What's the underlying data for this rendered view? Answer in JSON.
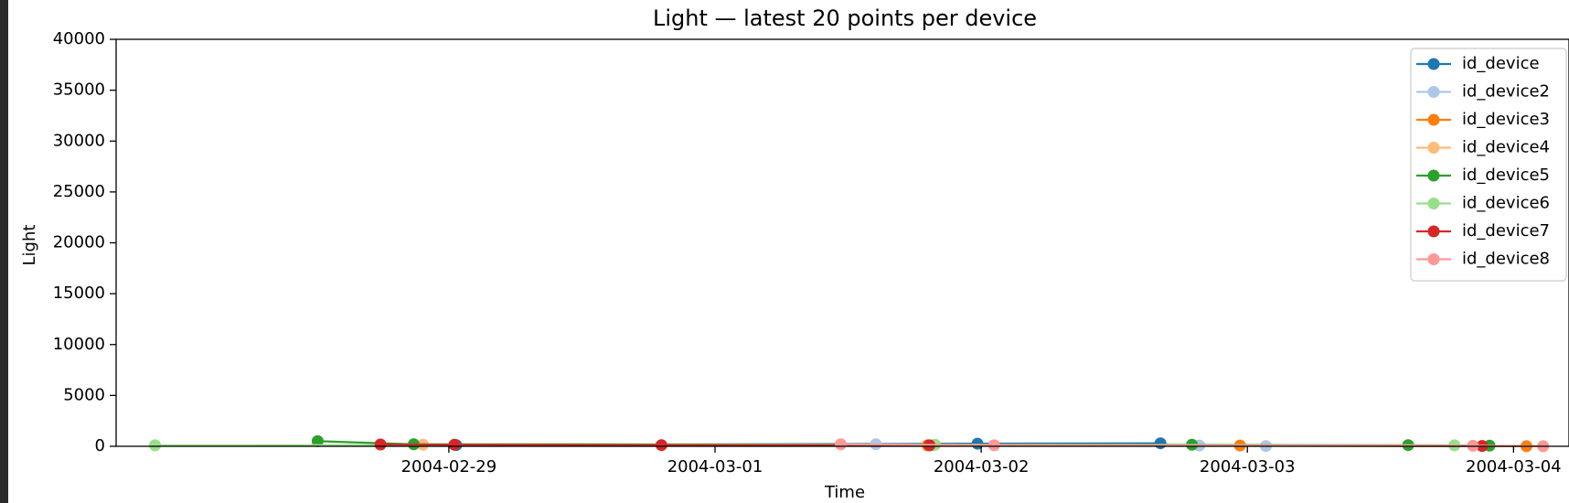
{
  "chart_data": {
    "type": "line",
    "title": "Light — latest 20 points per device",
    "xlabel": "Time",
    "ylabel": "Light",
    "ylim": [
      0,
      40000
    ],
    "xlim": [
      "2004-02-27T18:00",
      "2004-03-04T05:00"
    ],
    "grid": false,
    "legend_position": "top-right",
    "y_ticks": [
      "0",
      "5000",
      "10000",
      "15000",
      "20000",
      "25000",
      "30000",
      "35000",
      "40000"
    ],
    "x_ticks": [
      "2004-02-29",
      "2004-03-01",
      "2004-03-02",
      "2004-03-03",
      "2004-03-04"
    ],
    "series": [
      {
        "name": "id_device",
        "color": "#1f77b4",
        "points": [
          {
            "t": "2004-02-29T00:40",
            "v": 120
          },
          {
            "t": "2004-03-01T23:40",
            "v": 260
          },
          {
            "t": "2004-03-02T16:10",
            "v": 300
          }
        ]
      },
      {
        "name": "id_device2",
        "color": "#aec7e8",
        "points": [
          {
            "t": "2004-03-01T14:30",
            "v": 200
          },
          {
            "t": "2004-03-02T19:40",
            "v": 80
          },
          {
            "t": "2004-03-03T01:40",
            "v": 30
          }
        ]
      },
      {
        "name": "id_device3",
        "color": "#ff7f0e",
        "points": [
          {
            "t": "2004-03-01T19:10",
            "v": 100
          },
          {
            "t": "2004-03-02T23:20",
            "v": 80
          },
          {
            "t": "2004-03-04T01:10",
            "v": 10
          }
        ]
      },
      {
        "name": "id_device4",
        "color": "#ffbb78",
        "points": [
          {
            "t": "2004-02-28T21:40",
            "v": 150
          },
          {
            "t": "2004-03-01T19:40",
            "v": 100
          },
          {
            "t": "2004-03-03T21:10",
            "v": 40
          }
        ]
      },
      {
        "name": "id_device5",
        "color": "#2ca02c",
        "points": [
          {
            "t": "2004-02-28T12:10",
            "v": 500
          },
          {
            "t": "2004-02-28T20:50",
            "v": 200
          },
          {
            "t": "2004-03-02T19:00",
            "v": 150
          },
          {
            "t": "2004-03-03T14:30",
            "v": 120
          },
          {
            "t": "2004-03-03T21:50",
            "v": 60
          }
        ]
      },
      {
        "name": "id_device6",
        "color": "#98df8a",
        "points": [
          {
            "t": "2004-02-27T21:30",
            "v": 100
          },
          {
            "t": "2004-03-01T19:50",
            "v": 150
          },
          {
            "t": "2004-03-03T18:40",
            "v": 100
          }
        ]
      },
      {
        "name": "id_device7",
        "color": "#d62728",
        "points": [
          {
            "t": "2004-02-28T17:50",
            "v": 180
          },
          {
            "t": "2004-02-29T00:30",
            "v": 150
          },
          {
            "t": "2004-02-29T19:10",
            "v": 120
          },
          {
            "t": "2004-03-01T19:20",
            "v": 100
          },
          {
            "t": "2004-03-03T21:10",
            "v": 40
          }
        ]
      },
      {
        "name": "id_device8",
        "color": "#ff9896",
        "points": [
          {
            "t": "2004-03-01T11:20",
            "v": 200
          },
          {
            "t": "2004-03-02T01:10",
            "v": 100
          },
          {
            "t": "2004-03-03T20:20",
            "v": 50
          },
          {
            "t": "2004-03-04T02:40",
            "v": 10
          }
        ]
      }
    ]
  }
}
